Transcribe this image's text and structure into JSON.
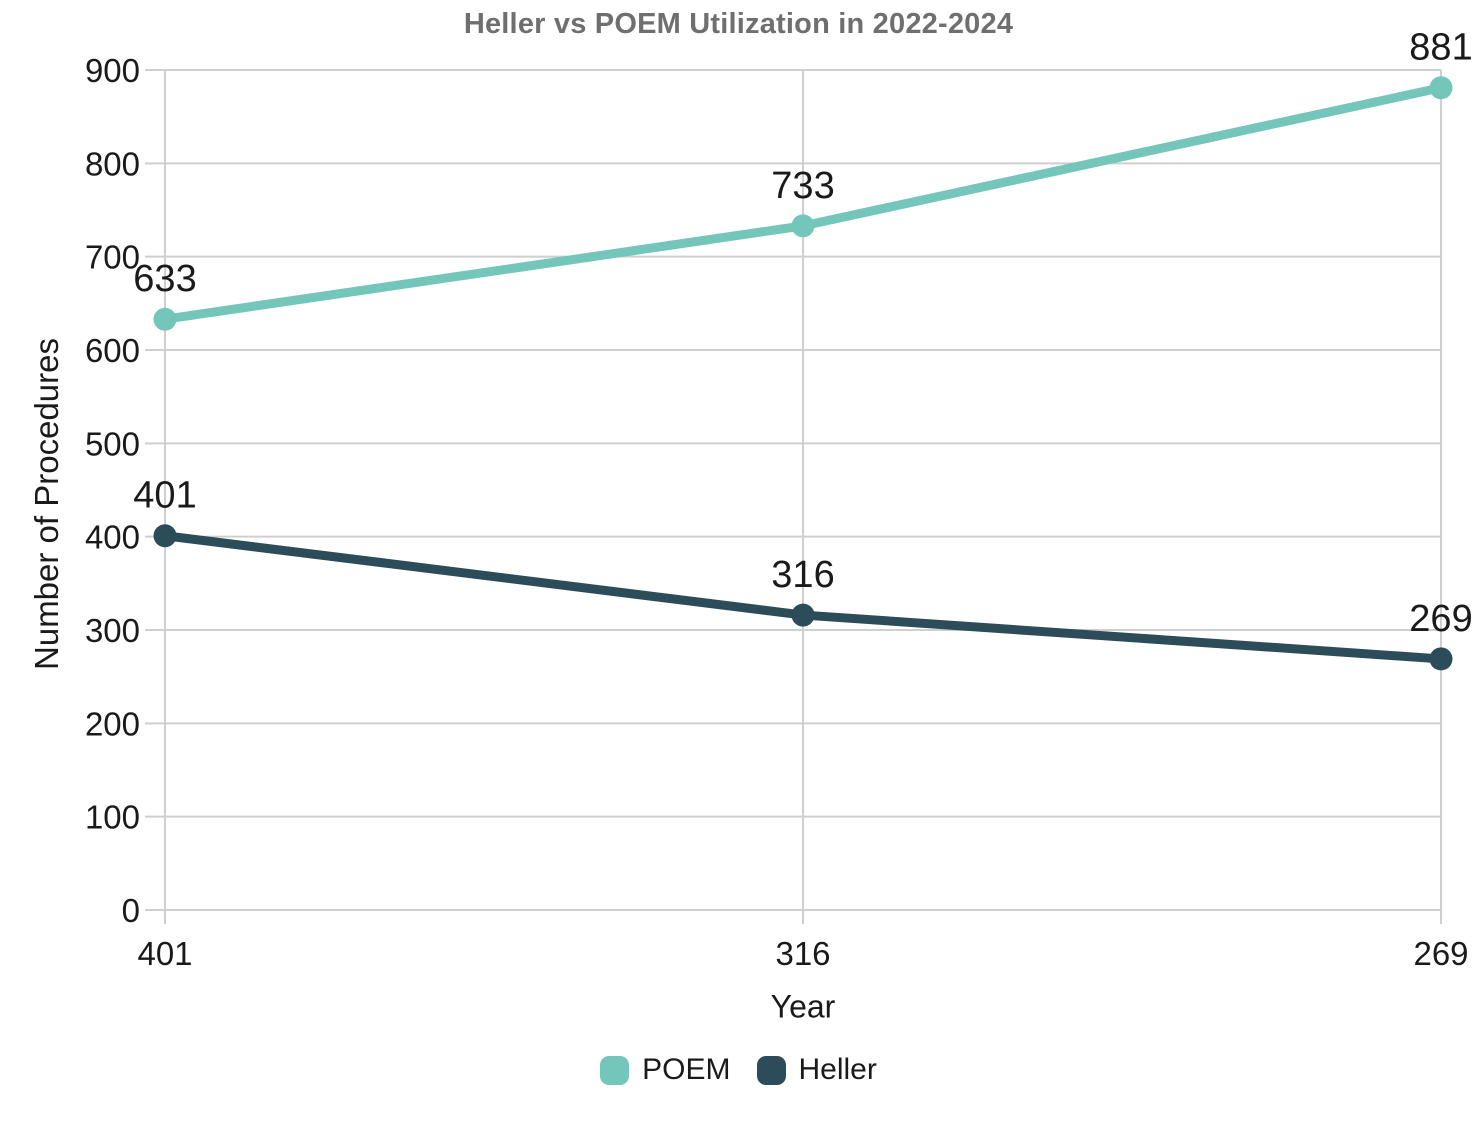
{
  "chart_data": {
    "type": "line",
    "title": "Heller vs POEM Utilization in 2022-2024",
    "xlabel": "Year",
    "ylabel": "Number of Procedures",
    "categories": [
      "401",
      "316",
      "269"
    ],
    "series": [
      {
        "name": "POEM",
        "values": [
          633,
          733,
          881
        ],
        "color": "#74c6bb"
      },
      {
        "name": "Heller",
        "values": [
          401,
          316,
          269
        ],
        "color": "#2c4c5a"
      }
    ],
    "ylim": [
      0,
      900
    ],
    "yticks": [
      0,
      100,
      200,
      300,
      400,
      500,
      600,
      700,
      800,
      900
    ],
    "grid": true,
    "legend_position": "bottom",
    "data_labels_shown": true
  },
  "colors": {
    "title": "#6f6f6f",
    "grid": "#cfcfcf",
    "text": "#1a1a1a",
    "background": "#ffffff"
  }
}
